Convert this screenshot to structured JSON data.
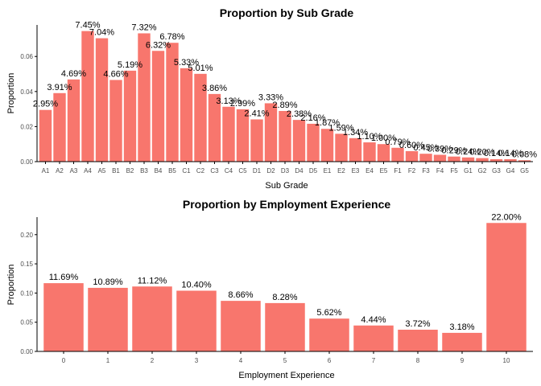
{
  "colors": {
    "bar": "#F8766D",
    "axis": "#000000",
    "tick_text": "#4d4d4d"
  },
  "chart_data": [
    {
      "type": "bar",
      "title": "Proportion by Sub Grade",
      "xlabel": "Sub Grade",
      "ylabel": "Proportion",
      "ylim": [
        0,
        0.078
      ],
      "yticks": [
        0.0,
        0.02,
        0.04,
        0.06
      ],
      "ytick_labels": [
        "0.00",
        "0.02",
        "0.04",
        "0.06"
      ],
      "categories": [
        "A1",
        "A2",
        "A3",
        "A4",
        "A5",
        "B1",
        "B2",
        "B3",
        "B4",
        "B5",
        "C1",
        "C2",
        "C3",
        "C4",
        "C5",
        "D1",
        "D2",
        "D3",
        "D4",
        "D5",
        "E1",
        "E2",
        "E3",
        "E4",
        "E5",
        "F1",
        "F2",
        "F3",
        "F4",
        "F5",
        "G1",
        "G2",
        "G3",
        "G4",
        "G5"
      ],
      "values": [
        0.0295,
        0.0391,
        0.0469,
        0.0745,
        0.0704,
        0.0466,
        0.0519,
        0.0732,
        0.0632,
        0.0678,
        0.0533,
        0.0501,
        0.0386,
        0.0313,
        0.0299,
        0.0241,
        0.0333,
        0.0289,
        0.0238,
        0.0216,
        0.0187,
        0.0159,
        0.0134,
        0.011,
        0.01,
        0.0079,
        0.006,
        0.0045,
        0.0039,
        0.0029,
        0.0024,
        0.002,
        0.0014,
        0.0014,
        0.0008
      ],
      "data_labels": [
        "2.95%",
        "3.91%",
        "4.69%",
        "7.45%",
        "7.04%",
        "4.66%",
        "5.19%",
        "7.32%",
        "6.32%",
        "6.78%",
        "5.33%",
        "5.01%",
        "3.86%",
        "3.13%",
        "2.99%",
        "2.41%",
        "3.33%",
        "2.89%",
        "2.38%",
        "2.16%",
        "1.87%",
        "1.59%",
        "1.34%",
        "1.10%",
        "1.00%",
        "0.79%",
        "0.60%",
        "0.45%",
        "0.39%",
        "0.29%",
        "0.24%",
        "0.20%",
        "0.14%",
        "0.14%",
        "0.08%"
      ],
      "grid": false,
      "legend": "none"
    },
    {
      "type": "bar",
      "title": "Proportion by Employment Experience",
      "xlabel": "Employment Experience",
      "ylabel": "Proportion",
      "ylim": [
        0,
        0.23
      ],
      "yticks": [
        0.0,
        0.05,
        0.1,
        0.15,
        0.2
      ],
      "ytick_labels": [
        "0.00",
        "0.05",
        "0.10",
        "0.15",
        "0.20"
      ],
      "categories": [
        "0",
        "1",
        "2",
        "3",
        "4",
        "5",
        "6",
        "7",
        "8",
        "9",
        "10"
      ],
      "values": [
        0.1169,
        0.1089,
        0.1112,
        0.104,
        0.0866,
        0.0828,
        0.0562,
        0.0444,
        0.0372,
        0.0318,
        0.22
      ],
      "data_labels": [
        "11.69%",
        "10.89%",
        "11.12%",
        "10.40%",
        "8.66%",
        "8.28%",
        "5.62%",
        "4.44%",
        "3.72%",
        "3.18%",
        "22.00%"
      ],
      "grid": false,
      "legend": "none"
    }
  ]
}
